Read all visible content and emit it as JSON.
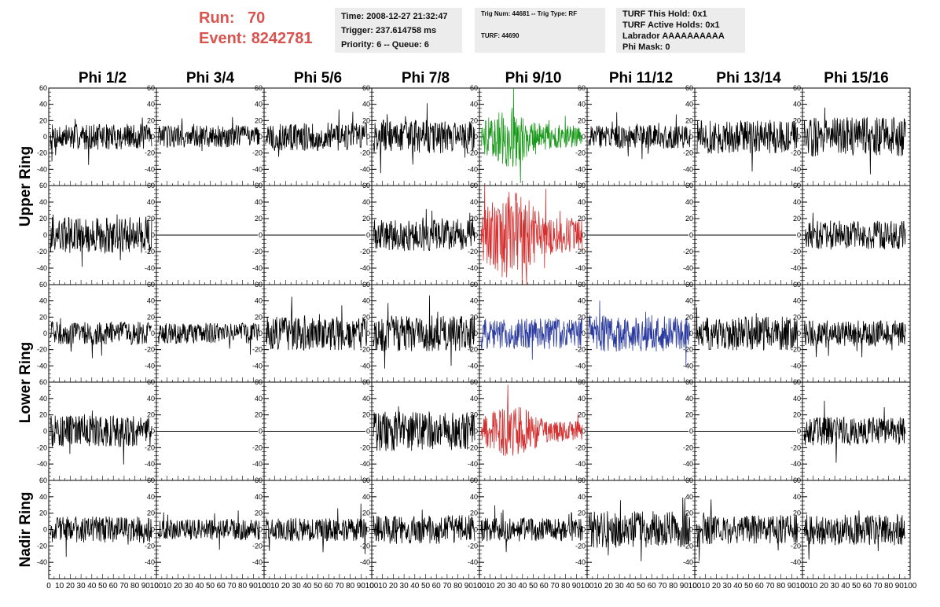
{
  "run_info": {
    "run_label": "Run:",
    "run_value": "70",
    "event_label": "Event:",
    "event_value": "8242781"
  },
  "panel_time": {
    "time": "Time: 2008-12-27 21:32:47",
    "trigger": "Trigger: 237.614758 ms",
    "priority": "Priority: 6 -- Queue: 6"
  },
  "panel_trig": {
    "trig": "Trig Num: 44681 -- Trig Type: RF",
    "turf": "TURF: 44690"
  },
  "panel_turf": {
    "hold": "TURF This Hold: 0x1",
    "active": "TURF Active Holds: 0x1",
    "labrador": "Labrador AAAAAAAAAA",
    "phimask": "Phi Mask: 0"
  },
  "chart_data": {
    "type": "line",
    "columns": [
      "Phi 1/2",
      "Phi 3/4",
      "Phi 5/6",
      "Phi 7/8",
      "Phi 9/10",
      "Phi 11/12",
      "Phi 13/14",
      "Phi 15/16"
    ],
    "ring_labels": [
      "Upper Ring",
      "Lower Ring",
      "Nadir Ring"
    ],
    "ylim": [
      -60,
      60
    ],
    "yticks": [
      60,
      40,
      20,
      0,
      -20,
      -40
    ],
    "xlim": [
      0,
      100
    ],
    "xticks": [
      "0",
      "10",
      "20",
      "30",
      "40",
      "50",
      "60",
      "70",
      "80",
      "90",
      "100"
    ],
    "grid": false,
    "colors": {
      "trace": "#000000",
      "green": "#1a9a1a",
      "red": "#d32f2f",
      "blue": "#2a3a9e"
    },
    "rows": [
      {
        "ring": "Upper Ring",
        "flat": [
          false,
          false,
          false,
          false,
          false,
          false,
          false,
          false
        ],
        "amp": [
          10,
          9,
          11,
          13,
          16,
          9,
          13,
          15
        ],
        "color": [
          "black",
          "black",
          "black",
          "black",
          "green",
          "black",
          "black",
          "black"
        ]
      },
      {
        "ring": "Upper Ring",
        "flat": [
          false,
          true,
          true,
          false,
          false,
          true,
          true,
          false
        ],
        "amp": [
          14,
          0,
          0,
          12,
          24,
          0,
          0,
          11
        ],
        "color": [
          "black",
          "black",
          "black",
          "black",
          "red",
          "black",
          "black",
          "black"
        ]
      },
      {
        "ring": "Lower Ring",
        "flat": [
          false,
          false,
          false,
          false,
          false,
          false,
          false,
          false
        ],
        "amp": [
          9,
          8,
          13,
          14,
          12,
          14,
          13,
          10
        ],
        "color": [
          "black",
          "black",
          "black",
          "black",
          "blue",
          "blue",
          "black",
          "black"
        ]
      },
      {
        "ring": "Lower Ring",
        "flat": [
          false,
          true,
          true,
          false,
          false,
          true,
          true,
          false
        ],
        "amp": [
          12,
          0,
          0,
          15,
          14,
          0,
          0,
          11
        ],
        "color": [
          "black",
          "black",
          "black",
          "black",
          "red",
          "black",
          "black",
          "black"
        ]
      },
      {
        "ring": "Nadir Ring",
        "flat": [
          false,
          false,
          false,
          false,
          false,
          false,
          false,
          false
        ],
        "amp": [
          10,
          8,
          9,
          11,
          9,
          14,
          11,
          12
        ],
        "color": [
          "black",
          "black",
          "black",
          "black",
          "black",
          "black",
          "black",
          "black"
        ]
      }
    ]
  }
}
